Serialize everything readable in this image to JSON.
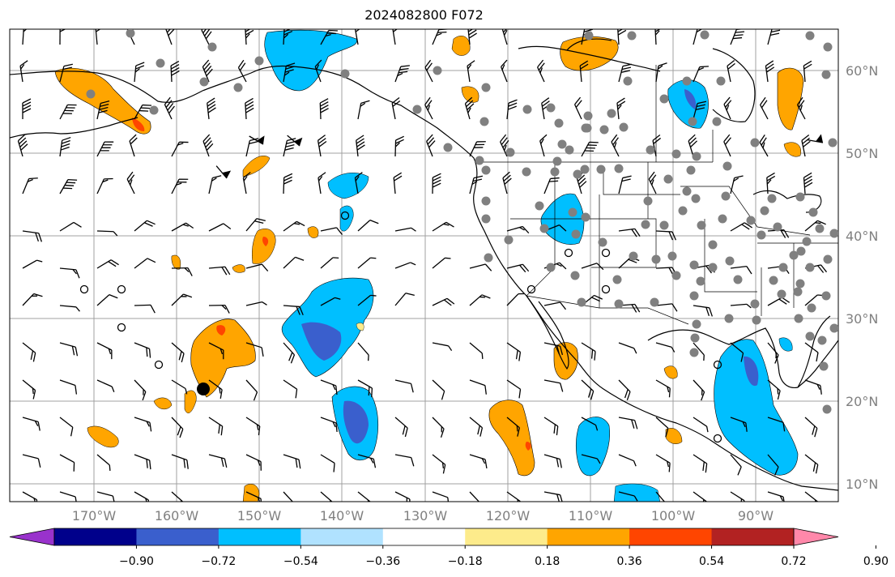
{
  "title": "2024082800 F072",
  "map": {
    "lon_ticks": [
      "170°W",
      "160°W",
      "150°W",
      "140°W",
      "130°W",
      "120°W",
      "110°W",
      "100°W",
      "90°W"
    ],
    "lat_ticks": [
      "60°N",
      "50°N",
      "40°N",
      "30°N",
      "20°N",
      "10°N"
    ],
    "grid_color": "#a0a0a0",
    "coast_color": "#000000",
    "station_color": "#808080",
    "barb_color": "#000000"
  },
  "colorbar": {
    "colors": [
      "#9932cc",
      "#00008b",
      "#3a5fcd",
      "#00bfff",
      "#b0e2ff",
      "#ffffff",
      "#fdeb8b",
      "#ffa500",
      "#ff4500",
      "#b22222",
      "#ff88aa"
    ],
    "tick_labels": [
      "−0.90",
      "−0.72",
      "−0.54",
      "−0.36",
      "−0.18",
      "0.18",
      "0.36",
      "0.54",
      "0.72",
      "0.90"
    ]
  }
}
